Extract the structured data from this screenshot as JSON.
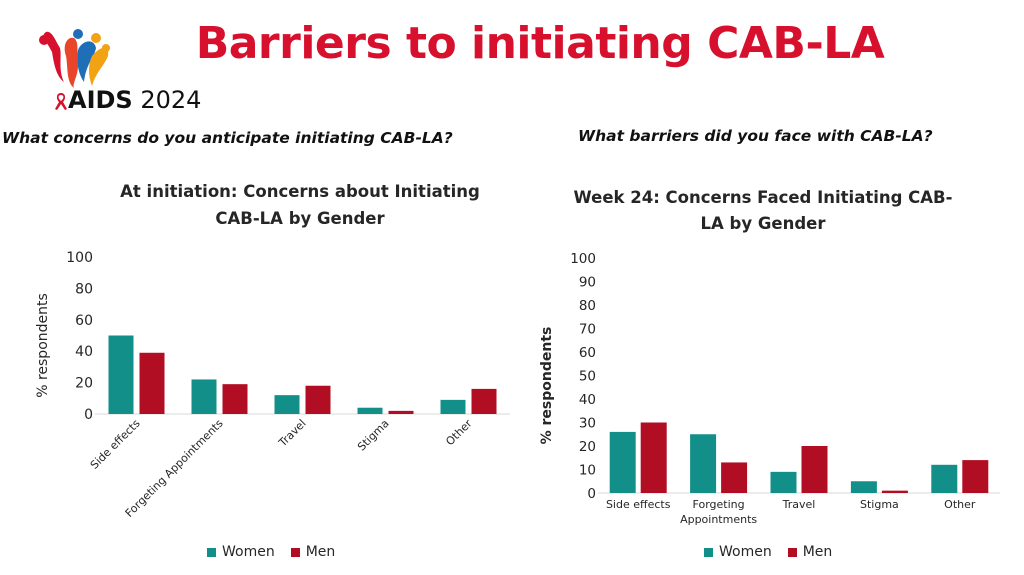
{
  "title": "Barriers to initiating CAB-LA",
  "logo": {
    "text_bold": "AIDS",
    "text_year": "2024"
  },
  "questions": {
    "left": "What concerns do you anticipate initiating CAB-LA?",
    "right": "What barriers did you face with CAB-LA?"
  },
  "colors": {
    "title": "#d7102e",
    "women": "#138f8a",
    "men": "#b20e23"
  },
  "chart_data": [
    {
      "type": "bar",
      "title": "At initiation: Concerns about Initiating CAB-LA by Gender",
      "title_lines": [
        "At initiation: Concerns about Initiating",
        "CAB-LA by Gender"
      ],
      "ylabel": "% respondents",
      "ylim": [
        0,
        100
      ],
      "yticks": [
        0,
        20,
        40,
        60,
        80,
        100
      ],
      "categories": [
        "Side effects",
        "Forgeting Appointments",
        "Travel",
        "Stigma",
        "Other"
      ],
      "x_tick_rotation": "diagonal",
      "series": [
        {
          "name": "Women",
          "values": [
            50,
            22,
            12,
            4,
            9
          ]
        },
        {
          "name": "Men",
          "values": [
            39,
            19,
            18,
            2,
            16
          ]
        }
      ],
      "legend": "bottom"
    },
    {
      "type": "bar",
      "title": "Week 24: Concerns Faced Initiating CAB-LA by Gender",
      "title_lines": [
        "Week 24: Concerns Faced Initiating CAB-",
        "LA by Gender"
      ],
      "ylabel": "% respondents",
      "ylim": [
        0,
        100
      ],
      "yticks": [
        0,
        10,
        20,
        30,
        40,
        50,
        60,
        70,
        80,
        90,
        100
      ],
      "categories": [
        "Side effects",
        "Forgeting Appointments",
        "Travel",
        "Stigma",
        "Other"
      ],
      "category_lines": [
        [
          "Side effects"
        ],
        [
          "Forgeting",
          "Appointments"
        ],
        [
          "Travel"
        ],
        [
          "Stigma"
        ],
        [
          "Other"
        ]
      ],
      "x_tick_rotation": "horizontal",
      "series": [
        {
          "name": "Women",
          "values": [
            26,
            25,
            9,
            5,
            12
          ]
        },
        {
          "name": "Men",
          "values": [
            30,
            13,
            20,
            1,
            14
          ]
        }
      ],
      "legend": "bottom"
    }
  ]
}
